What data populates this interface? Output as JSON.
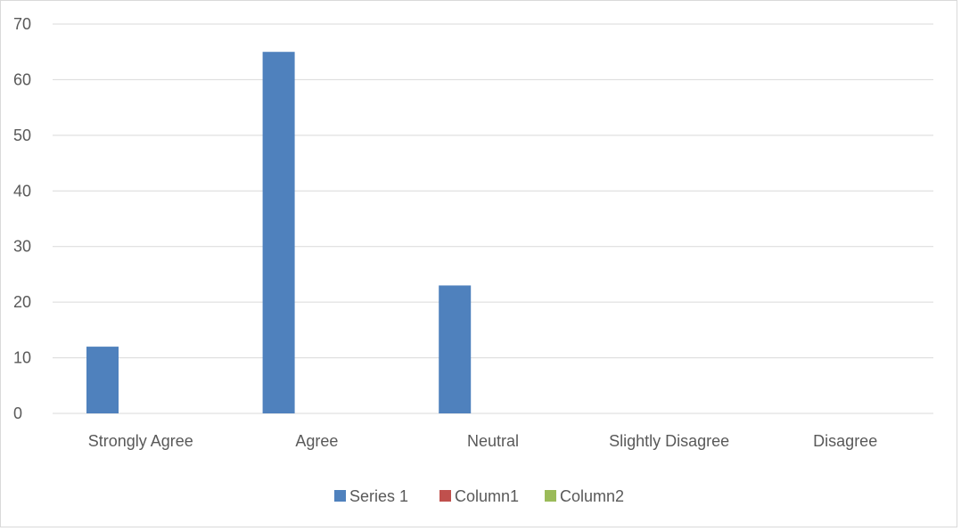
{
  "chart_data": {
    "type": "bar",
    "categories": [
      "Strongly Agree",
      "Agree",
      "Neutral",
      "Slightly Disagree",
      "Disagree"
    ],
    "series": [
      {
        "name": "Series 1",
        "values": [
          12,
          65,
          23,
          0,
          0
        ],
        "color": "#4f81bd"
      },
      {
        "name": "Column1",
        "values": [
          0,
          0,
          0,
          0,
          0
        ],
        "color": "#c0504d"
      },
      {
        "name": "Column2",
        "values": [
          0,
          0,
          0,
          0,
          0
        ],
        "color": "#9bbb59"
      }
    ],
    "ylim": [
      0,
      70
    ],
    "yticks": [
      0,
      10,
      20,
      30,
      40,
      50,
      60,
      70
    ],
    "grid": true,
    "legend_position": "bottom",
    "gridline_color": "#d9d9d9",
    "label_color": "#595959"
  }
}
